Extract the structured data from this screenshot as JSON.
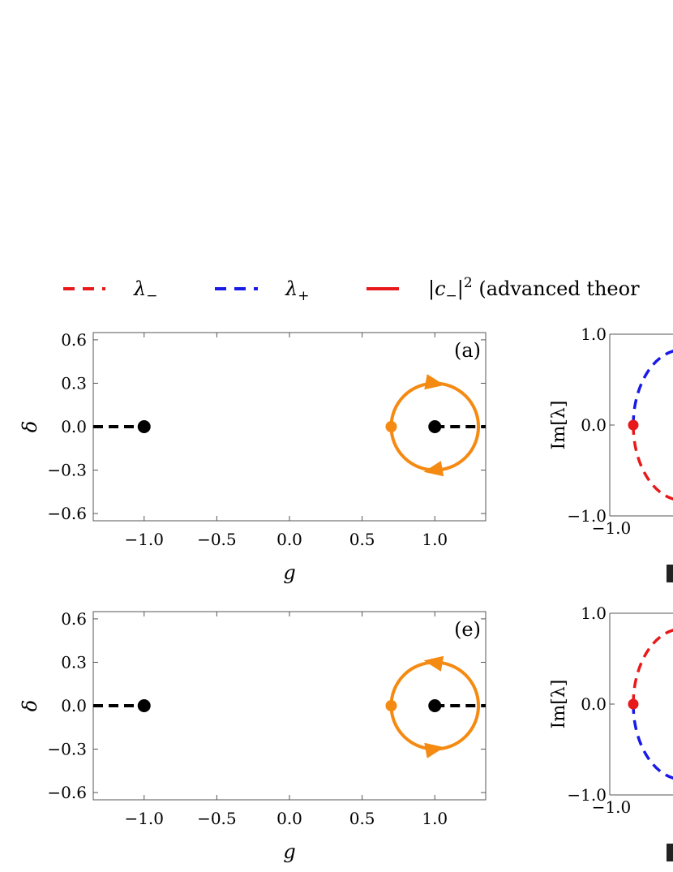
{
  "legend": [
    {
      "symbol": "λ",
      "sub": "−",
      "color": "#e8191a",
      "style": "dashed"
    },
    {
      "symbol": "λ",
      "sub": "+",
      "color": "#1a1ae6",
      "style": "dashed"
    },
    {
      "symbol": "|c",
      "sub": "−",
      "sup": "2",
      "suffix": " (advanced theor",
      "color": "#e8191a",
      "style": "solid"
    }
  ],
  "colors": {
    "orange": "#f58a12",
    "black": "#000000",
    "red": "#e8191a",
    "blue": "#1a1ae6"
  },
  "chart_data": [
    {
      "id": "a",
      "label": "(a)",
      "type": "line",
      "xlabel": "g",
      "ylabel": "δ",
      "xlim": [
        -1.35,
        1.35
      ],
      "ylim": [
        -0.65,
        0.65
      ],
      "xticks": [
        "−1.0",
        "−0.5",
        "0.0",
        "0.5",
        "1.0"
      ],
      "xtick_values": [
        -1.0,
        -0.5,
        0.0,
        0.5,
        1.0
      ],
      "yticks": [
        "0.6",
        "0.3",
        "0.0",
        "−0.3",
        "−0.6"
      ],
      "ytick_values": [
        0.6,
        0.3,
        0.0,
        -0.3,
        -0.6
      ],
      "branch_cuts": [
        {
          "x": [
            -1.35,
            -1.0
          ],
          "y": 0.0
        },
        {
          "x": [
            1.0,
            1.35
          ],
          "y": 0.0
        }
      ],
      "exceptional_points": [
        {
          "x": -1.0,
          "y": 0.0
        },
        {
          "x": 1.0,
          "y": 0.0
        }
      ],
      "loop": {
        "center_x": 1.0,
        "center_y": 0.0,
        "radius": 0.3,
        "start_x": 0.7,
        "direction": "clockwise"
      }
    },
    {
      "id": "e",
      "label": "(e)",
      "type": "line",
      "xlabel": "g",
      "ylabel": "δ",
      "xlim": [
        -1.35,
        1.35
      ],
      "ylim": [
        -0.65,
        0.65
      ],
      "xticks": [
        "−1.0",
        "−0.5",
        "0.0",
        "0.5",
        "1.0"
      ],
      "xtick_values": [
        -1.0,
        -0.5,
        0.0,
        0.5,
        1.0
      ],
      "yticks": [
        "0.6",
        "0.3",
        "0.0",
        "−0.3",
        "−0.6"
      ],
      "ytick_values": [
        0.6,
        0.3,
        0.0,
        -0.3,
        -0.6
      ],
      "branch_cuts": [
        {
          "x": [
            -1.35,
            -1.0
          ],
          "y": 0.0
        },
        {
          "x": [
            1.0,
            1.35
          ],
          "y": 0.0
        }
      ],
      "exceptional_points": [
        {
          "x": -1.0,
          "y": 0.0
        },
        {
          "x": 1.0,
          "y": 0.0
        }
      ],
      "loop": {
        "center_x": 1.0,
        "center_y": 0.0,
        "radius": 0.3,
        "start_x": 0.7,
        "direction": "counterclockwise"
      }
    },
    {
      "id": "b",
      "type": "line",
      "ylabel": "Im[λ]",
      "yticks": [
        "1.0",
        "0.0",
        "−1.0"
      ],
      "ytick_values": [
        1.0,
        0.0,
        -1.0
      ],
      "xticks": [
        "−1.0"
      ],
      "xtick_values": [
        -1.0
      ],
      "series": [
        {
          "color": "#1a1ae6",
          "style": "dashed",
          "arc": "upper"
        },
        {
          "color": "#e8191a",
          "style": "dashed",
          "arc": "lower"
        }
      ],
      "start_point": {
        "color": "#e8191a",
        "y": 0.0
      }
    },
    {
      "id": "f",
      "type": "line",
      "ylabel": "Im[λ]",
      "yticks": [
        "1.0",
        "0.0",
        "−1.0"
      ],
      "ytick_values": [
        1.0,
        0.0,
        -1.0
      ],
      "xticks": [
        "−1.0"
      ],
      "xtick_values": [
        -1.0
      ],
      "series": [
        {
          "color": "#e8191a",
          "style": "dashed",
          "arc": "upper"
        },
        {
          "color": "#1a1ae6",
          "style": "dashed",
          "arc": "lower"
        }
      ],
      "start_point": {
        "color": "#e8191a",
        "y": 0.0
      }
    }
  ]
}
